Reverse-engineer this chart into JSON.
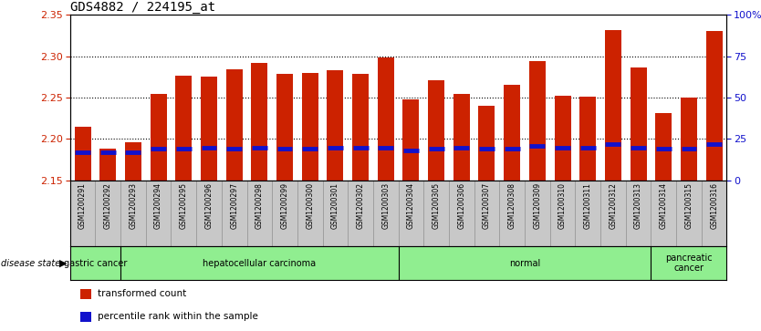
{
  "title": "GDS4882 / 224195_at",
  "samples": [
    "GSM1200291",
    "GSM1200292",
    "GSM1200293",
    "GSM1200294",
    "GSM1200295",
    "GSM1200296",
    "GSM1200297",
    "GSM1200298",
    "GSM1200299",
    "GSM1200300",
    "GSM1200301",
    "GSM1200302",
    "GSM1200303",
    "GSM1200304",
    "GSM1200305",
    "GSM1200306",
    "GSM1200307",
    "GSM1200308",
    "GSM1200309",
    "GSM1200310",
    "GSM1200311",
    "GSM1200312",
    "GSM1200313",
    "GSM1200314",
    "GSM1200315",
    "GSM1200316"
  ],
  "transformed_counts": [
    2.215,
    2.188,
    2.196,
    2.254,
    2.277,
    2.275,
    2.284,
    2.292,
    2.279,
    2.28,
    2.283,
    2.279,
    2.299,
    2.248,
    2.271,
    2.255,
    2.24,
    2.265,
    2.294,
    2.252,
    2.251,
    2.332,
    2.287,
    2.231,
    2.25,
    2.33
  ],
  "percentile_ranks": [
    17,
    17,
    17,
    19,
    19,
    20,
    19,
    20,
    19,
    19,
    20,
    20,
    20,
    18,
    19,
    20,
    19,
    19,
    21,
    20,
    20,
    22,
    20,
    19,
    19,
    22
  ],
  "group_boundaries": [
    0,
    2,
    13,
    23,
    26
  ],
  "group_labels": [
    "gastric cancer",
    "hepatocellular carcinoma",
    "normal",
    "pancreatic\ncancer"
  ],
  "ylim_left": [
    2.15,
    2.35
  ],
  "ylim_right": [
    0,
    100
  ],
  "yticks_left": [
    2.15,
    2.2,
    2.25,
    2.3,
    2.35
  ],
  "yticks_right": [
    0,
    25,
    50,
    75,
    100
  ],
  "bar_color": "#CC2200",
  "marker_color": "#1111CC",
  "bar_width": 0.65,
  "title_fontsize": 10,
  "left_tick_color": "#CC2200",
  "right_tick_color": "#1111CC",
  "group_fill": "#90EE90",
  "tick_bg": "#C8C8C8"
}
